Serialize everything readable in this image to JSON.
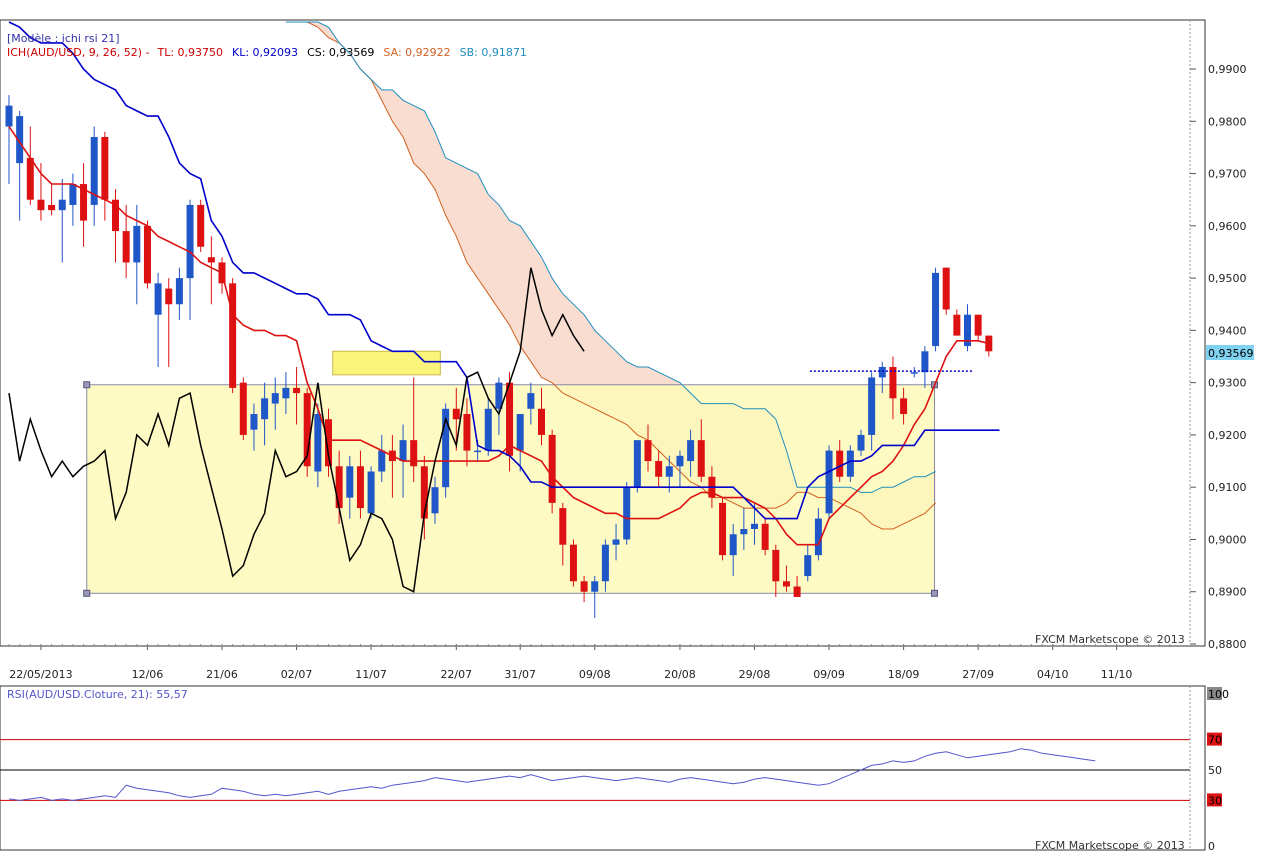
{
  "header": {
    "template": "[Modèle : ichi rsi 21]",
    "parts": [
      {
        "text": "ICH(AUD/USD, 9, 26, 52) -",
        "color": "#cc0000"
      },
      {
        "text": "TL: 0,93750",
        "color": "#cc0000"
      },
      {
        "text": "KL: 0,92093",
        "color": "#0000cc"
      },
      {
        "text": "CS: 0,93569",
        "color": "#000000"
      },
      {
        "text": "SA: 0,92922",
        "color": "#d2601e"
      },
      {
        "text": "SB: 0,91871",
        "color": "#1f8fbf"
      }
    ]
  },
  "watermark": "FXCM Marketscope © 2013",
  "last_price_label": "0,93569",
  "rsi_label": "RSI(AUD/USD.Cloture, 21): 55,57",
  "colors": {
    "bull": "#1f56c8",
    "bear": "#dd1111",
    "tenkan": "#dd1111",
    "kijun": "#0000cc",
    "chikou": "#000000",
    "span_a": "#d2601e",
    "span_b": "#1f8fbf",
    "cloud_fill": "#f9ddd0",
    "range_fill": "#fdf9b8",
    "rsi": "#5555cc"
  },
  "chart_data": [
    {
      "type": "candlestick",
      "symbol": "AUD/USD",
      "ylim": [
        0.88,
        0.999
      ],
      "y_ticks": [
        "0,9900",
        "0,9800",
        "0,9700",
        "0,9600",
        "0,9500",
        "0,9400",
        "0,9300",
        "0,9200",
        "0,9100",
        "0,9000",
        "0,8900",
        "0,8800"
      ],
      "y_tick_values": [
        0.99,
        0.98,
        0.97,
        0.96,
        0.95,
        0.94,
        0.93,
        0.92,
        0.91,
        0.9,
        0.89,
        0.88
      ],
      "x_ticks": [
        "22/05/2013",
        "12/06",
        "21/06",
        "02/07",
        "11/07",
        "22/07",
        "31/07",
        "09/08",
        "20/08",
        "29/08",
        "09/09",
        "18/09",
        "27/09",
        "04/10",
        "11/10"
      ],
      "x_tick_index": [
        3,
        13,
        20,
        27,
        34,
        42,
        48,
        55,
        63,
        70,
        77,
        84,
        91,
        98,
        104
      ],
      "candles": [
        {
          "o": 0.979,
          "h": 0.985,
          "l": 0.968,
          "c": 0.983
        },
        {
          "o": 0.972,
          "h": 0.982,
          "l": 0.961,
          "c": 0.981
        },
        {
          "o": 0.973,
          "h": 0.979,
          "l": 0.964,
          "c": 0.965
        },
        {
          "o": 0.965,
          "h": 0.972,
          "l": 0.961,
          "c": 0.963
        },
        {
          "o": 0.964,
          "h": 0.968,
          "l": 0.962,
          "c": 0.963
        },
        {
          "o": 0.963,
          "h": 0.969,
          "l": 0.953,
          "c": 0.965
        },
        {
          "o": 0.964,
          "h": 0.97,
          "l": 0.96,
          "c": 0.968
        },
        {
          "o": 0.968,
          "h": 0.972,
          "l": 0.956,
          "c": 0.961
        },
        {
          "o": 0.964,
          "h": 0.979,
          "l": 0.96,
          "c": 0.977
        },
        {
          "o": 0.977,
          "h": 0.978,
          "l": 0.961,
          "c": 0.965
        },
        {
          "o": 0.965,
          "h": 0.967,
          "l": 0.953,
          "c": 0.959
        },
        {
          "o": 0.959,
          "h": 0.964,
          "l": 0.95,
          "c": 0.953
        },
        {
          "o": 0.953,
          "h": 0.964,
          "l": 0.945,
          "c": 0.96
        },
        {
          "o": 0.96,
          "h": 0.961,
          "l": 0.948,
          "c": 0.949
        },
        {
          "o": 0.943,
          "h": 0.951,
          "l": 0.933,
          "c": 0.949
        },
        {
          "o": 0.948,
          "h": 0.95,
          "l": 0.933,
          "c": 0.945
        },
        {
          "o": 0.945,
          "h": 0.952,
          "l": 0.942,
          "c": 0.95
        },
        {
          "o": 0.95,
          "h": 0.965,
          "l": 0.942,
          "c": 0.964
        },
        {
          "o": 0.964,
          "h": 0.965,
          "l": 0.955,
          "c": 0.956
        },
        {
          "o": 0.954,
          "h": 0.958,
          "l": 0.945,
          "c": 0.953
        },
        {
          "o": 0.953,
          "h": 0.954,
          "l": 0.947,
          "c": 0.949
        },
        {
          "o": 0.949,
          "h": 0.95,
          "l": 0.928,
          "c": 0.929
        },
        {
          "o": 0.93,
          "h": 0.931,
          "l": 0.919,
          "c": 0.92
        },
        {
          "o": 0.921,
          "h": 0.926,
          "l": 0.917,
          "c": 0.924
        },
        {
          "o": 0.923,
          "h": 0.93,
          "l": 0.918,
          "c": 0.927
        },
        {
          "o": 0.926,
          "h": 0.931,
          "l": 0.921,
          "c": 0.928
        },
        {
          "o": 0.927,
          "h": 0.932,
          "l": 0.924,
          "c": 0.929
        },
        {
          "o": 0.929,
          "h": 0.933,
          "l": 0.922,
          "c": 0.928
        },
        {
          "o": 0.928,
          "h": 0.929,
          "l": 0.912,
          "c": 0.914
        },
        {
          "o": 0.913,
          "h": 0.926,
          "l": 0.91,
          "c": 0.924
        },
        {
          "o": 0.923,
          "h": 0.925,
          "l": 0.912,
          "c": 0.914
        },
        {
          "o": 0.914,
          "h": 0.917,
          "l": 0.903,
          "c": 0.906
        },
        {
          "o": 0.908,
          "h": 0.916,
          "l": 0.904,
          "c": 0.914
        },
        {
          "o": 0.914,
          "h": 0.917,
          "l": 0.904,
          "c": 0.906
        },
        {
          "o": 0.905,
          "h": 0.914,
          "l": 0.904,
          "c": 0.913
        },
        {
          "o": 0.913,
          "h": 0.92,
          "l": 0.911,
          "c": 0.917
        },
        {
          "o": 0.917,
          "h": 0.92,
          "l": 0.908,
          "c": 0.915
        },
        {
          "o": 0.915,
          "h": 0.922,
          "l": 0.908,
          "c": 0.919
        },
        {
          "o": 0.919,
          "h": 0.931,
          "l": 0.911,
          "c": 0.914
        },
        {
          "o": 0.914,
          "h": 0.916,
          "l": 0.9,
          "c": 0.904
        },
        {
          "o": 0.905,
          "h": 0.912,
          "l": 0.903,
          "c": 0.91
        },
        {
          "o": 0.91,
          "h": 0.926,
          "l": 0.908,
          "c": 0.925
        },
        {
          "o": 0.925,
          "h": 0.929,
          "l": 0.917,
          "c": 0.923
        },
        {
          "o": 0.924,
          "h": 0.927,
          "l": 0.914,
          "c": 0.917
        },
        {
          "o": 0.917,
          "h": 0.919,
          "l": 0.915,
          "c": 0.917
        },
        {
          "o": 0.917,
          "h": 0.927,
          "l": 0.916,
          "c": 0.925
        },
        {
          "o": 0.925,
          "h": 0.931,
          "l": 0.92,
          "c": 0.93
        },
        {
          "o": 0.93,
          "h": 0.932,
          "l": 0.913,
          "c": 0.916
        },
        {
          "o": 0.917,
          "h": 0.924,
          "l": 0.913,
          "c": 0.924
        },
        {
          "o": 0.925,
          "h": 0.93,
          "l": 0.922,
          "c": 0.928
        },
        {
          "o": 0.925,
          "h": 0.929,
          "l": 0.918,
          "c": 0.92
        },
        {
          "o": 0.92,
          "h": 0.921,
          "l": 0.905,
          "c": 0.907
        },
        {
          "o": 0.906,
          "h": 0.907,
          "l": 0.895,
          "c": 0.899
        },
        {
          "o": 0.899,
          "h": 0.9,
          "l": 0.891,
          "c": 0.892
        },
        {
          "o": 0.892,
          "h": 0.893,
          "l": 0.888,
          "c": 0.89
        },
        {
          "o": 0.89,
          "h": 0.893,
          "l": 0.885,
          "c": 0.892
        },
        {
          "o": 0.892,
          "h": 0.9,
          "l": 0.89,
          "c": 0.899
        },
        {
          "o": 0.899,
          "h": 0.903,
          "l": 0.896,
          "c": 0.9
        },
        {
          "o": 0.9,
          "h": 0.911,
          "l": 0.899,
          "c": 0.91
        },
        {
          "o": 0.91,
          "h": 0.919,
          "l": 0.909,
          "c": 0.919
        },
        {
          "o": 0.919,
          "h": 0.922,
          "l": 0.913,
          "c": 0.915
        },
        {
          "o": 0.915,
          "h": 0.917,
          "l": 0.91,
          "c": 0.912
        },
        {
          "o": 0.912,
          "h": 0.916,
          "l": 0.909,
          "c": 0.914
        },
        {
          "o": 0.914,
          "h": 0.917,
          "l": 0.91,
          "c": 0.916
        },
        {
          "o": 0.915,
          "h": 0.921,
          "l": 0.912,
          "c": 0.919
        },
        {
          "o": 0.919,
          "h": 0.923,
          "l": 0.911,
          "c": 0.912
        },
        {
          "o": 0.912,
          "h": 0.914,
          "l": 0.906,
          "c": 0.908
        },
        {
          "o": 0.907,
          "h": 0.908,
          "l": 0.896,
          "c": 0.897
        },
        {
          "o": 0.897,
          "h": 0.903,
          "l": 0.893,
          "c": 0.901
        },
        {
          "o": 0.901,
          "h": 0.906,
          "l": 0.898,
          "c": 0.902
        },
        {
          "o": 0.902,
          "h": 0.907,
          "l": 0.899,
          "c": 0.903
        },
        {
          "o": 0.903,
          "h": 0.904,
          "l": 0.897,
          "c": 0.898
        },
        {
          "o": 0.898,
          "h": 0.899,
          "l": 0.889,
          "c": 0.892
        },
        {
          "o": 0.892,
          "h": 0.895,
          "l": 0.89,
          "c": 0.891
        },
        {
          "o": 0.891,
          "h": 0.893,
          "l": 0.889,
          "c": 0.889
        },
        {
          "o": 0.893,
          "h": 0.899,
          "l": 0.892,
          "c": 0.897
        },
        {
          "o": 0.897,
          "h": 0.906,
          "l": 0.896,
          "c": 0.904
        },
        {
          "o": 0.905,
          "h": 0.918,
          "l": 0.904,
          "c": 0.917
        },
        {
          "o": 0.917,
          "h": 0.919,
          "l": 0.911,
          "c": 0.912
        },
        {
          "o": 0.912,
          "h": 0.918,
          "l": 0.911,
          "c": 0.917
        },
        {
          "o": 0.917,
          "h": 0.921,
          "l": 0.916,
          "c": 0.92
        },
        {
          "o": 0.92,
          "h": 0.932,
          "l": 0.917,
          "c": 0.931
        },
        {
          "o": 0.931,
          "h": 0.934,
          "l": 0.928,
          "c": 0.933
        },
        {
          "o": 0.933,
          "h": 0.935,
          "l": 0.923,
          "c": 0.927
        },
        {
          "o": 0.927,
          "h": 0.929,
          "l": 0.922,
          "c": 0.924
        },
        {
          "o": 0.932,
          "h": 0.933,
          "l": 0.931,
          "c": 0.932
        },
        {
          "o": 0.932,
          "h": 0.937,
          "l": 0.929,
          "c": 0.936
        },
        {
          "o": 0.937,
          "h": 0.952,
          "l": 0.936,
          "c": 0.951
        },
        {
          "o": 0.952,
          "h": 0.952,
          "l": 0.943,
          "c": 0.944
        },
        {
          "o": 0.943,
          "h": 0.944,
          "l": 0.939,
          "c": 0.939
        },
        {
          "o": 0.937,
          "h": 0.945,
          "l": 0.936,
          "c": 0.943
        },
        {
          "o": 0.943,
          "h": 0.943,
          "l": 0.938,
          "c": 0.939
        },
        {
          "o": 0.939,
          "h": 0.939,
          "l": 0.935,
          "c": 0.936
        }
      ],
      "tenkan": [
        0.979,
        0.976,
        0.973,
        0.97,
        0.968,
        0.968,
        0.968,
        0.967,
        0.966,
        0.965,
        0.964,
        0.962,
        0.961,
        0.96,
        0.958,
        0.957,
        0.956,
        0.955,
        0.953,
        0.952,
        0.951,
        0.943,
        0.941,
        0.94,
        0.94,
        0.939,
        0.939,
        0.938,
        0.93,
        0.925,
        0.919,
        0.919,
        0.919,
        0.919,
        0.918,
        0.917,
        0.916,
        0.915,
        0.915,
        0.915,
        0.915,
        0.915,
        0.915,
        0.915,
        0.915,
        0.915,
        0.916,
        0.918,
        0.917,
        0.916,
        0.915,
        0.912,
        0.91,
        0.908,
        0.907,
        0.906,
        0.905,
        0.905,
        0.904,
        0.904,
        0.904,
        0.904,
        0.905,
        0.906,
        0.908,
        0.909,
        0.909,
        0.908,
        0.908,
        0.908,
        0.907,
        0.906,
        0.904,
        0.901,
        0.899,
        0.899,
        0.899,
        0.904,
        0.906,
        0.908,
        0.91,
        0.912,
        0.913,
        0.915,
        0.918,
        0.922,
        0.925,
        0.93,
        0.935,
        0.938,
        0.938,
        0.938,
        0.9375
      ],
      "kijun": [
        0.999,
        0.998,
        0.996,
        0.995,
        0.995,
        0.995,
        0.993,
        0.99,
        0.988,
        0.987,
        0.986,
        0.983,
        0.982,
        0.981,
        0.981,
        0.977,
        0.972,
        0.97,
        0.969,
        0.961,
        0.958,
        0.953,
        0.951,
        0.951,
        0.95,
        0.949,
        0.948,
        0.947,
        0.947,
        0.946,
        0.943,
        0.943,
        0.943,
        0.942,
        0.938,
        0.937,
        0.936,
        0.936,
        0.936,
        0.934,
        0.934,
        0.934,
        0.934,
        0.931,
        0.918,
        0.917,
        0.917,
        0.916,
        0.914,
        0.911,
        0.911,
        0.91,
        0.91,
        0.91,
        0.91,
        0.91,
        0.91,
        0.91,
        0.91,
        0.91,
        0.91,
        0.91,
        0.91,
        0.91,
        0.91,
        0.91,
        0.91,
        0.91,
        0.91,
        0.908,
        0.906,
        0.904,
        0.904,
        0.904,
        0.904,
        0.91,
        0.912,
        0.913,
        0.914,
        0.915,
        0.915,
        0.916,
        0.918,
        0.918,
        0.918,
        0.918,
        0.9209,
        0.9209,
        0.9209,
        0.9209,
        0.9209,
        0.9209,
        0.9209,
        0.9209
      ],
      "chikou": [
        0.928,
        0.915,
        0.923,
        0.917,
        0.912,
        0.915,
        0.912,
        0.914,
        0.915,
        0.917,
        0.904,
        0.909,
        0.92,
        0.918,
        0.924,
        0.918,
        0.927,
        0.928,
        0.918,
        0.91,
        0.902,
        0.893,
        0.895,
        0.901,
        0.905,
        0.917,
        0.912,
        0.913,
        0.916,
        0.93,
        0.916,
        0.906,
        0.896,
        0.899,
        0.905,
        0.904,
        0.9,
        0.891,
        0.89,
        0.905,
        0.915,
        0.923,
        0.918,
        0.931,
        0.932,
        0.927,
        0.924,
        0.93,
        0.936,
        0.952,
        0.944,
        0.939,
        0.943,
        0.939,
        0.936
      ],
      "chikou_start": 0,
      "span_a": [
        0.9999,
        0.9999,
        0.9999,
        0.998,
        0.996,
        0.995,
        0.993,
        0.99,
        0.988,
        0.984,
        0.98,
        0.977,
        0.972,
        0.97,
        0.967,
        0.962,
        0.958,
        0.953,
        0.95,
        0.947,
        0.944,
        0.941,
        0.937,
        0.934,
        0.931,
        0.93,
        0.928,
        0.927,
        0.926,
        0.925,
        0.924,
        0.923,
        0.922,
        0.92,
        0.919,
        0.917,
        0.915,
        0.913,
        0.911,
        0.91,
        0.908,
        0.908,
        0.907,
        0.906,
        0.906,
        0.906,
        0.906,
        0.907,
        0.909,
        0.909,
        0.908,
        0.908,
        0.907,
        0.906,
        0.905,
        0.903,
        0.902,
        0.902,
        0.903,
        0.904,
        0.905,
        0.907
      ],
      "span_b": [
        0.9999,
        0.9999,
        0.9999,
        0.999,
        0.998,
        0.995,
        0.993,
        0.99,
        0.988,
        0.986,
        0.986,
        0.984,
        0.983,
        0.982,
        0.978,
        0.973,
        0.972,
        0.971,
        0.97,
        0.966,
        0.964,
        0.961,
        0.96,
        0.957,
        0.954,
        0.95,
        0.947,
        0.945,
        0.943,
        0.94,
        0.938,
        0.936,
        0.934,
        0.933,
        0.933,
        0.932,
        0.931,
        0.93,
        0.928,
        0.926,
        0.926,
        0.926,
        0.926,
        0.925,
        0.925,
        0.925,
        0.923,
        0.917,
        0.91,
        0.91,
        0.91,
        0.91,
        0.91,
        0.91,
        0.909,
        0.909,
        0.91,
        0.91,
        0.911,
        0.912,
        0.912,
        0.913
      ],
      "span_start": 26,
      "range_box": {
        "y_top": 0.9296,
        "y_bottom": 0.8897,
        "x_from_index": 7.3,
        "x_to_index": 86.9
      },
      "mini_box": {
        "y_top": 0.936,
        "y_bottom": 0.9315,
        "x_from_index": 30.4,
        "x_to_index": 40.5
      },
      "dotted_level": {
        "value": 0.9322,
        "x_from_index": 75.2,
        "x_to_index": 90.6
      }
    },
    {
      "type": "line",
      "name": "RSI",
      "ylim": [
        0,
        100
      ],
      "y_ticks": [
        "100",
        "70",
        "50",
        "30",
        "0"
      ],
      "y_tick_values": [
        100,
        70,
        50,
        30,
        0
      ],
      "levels": [
        70,
        50,
        30
      ],
      "values": [
        31,
        30,
        31,
        32,
        30,
        31,
        30,
        31,
        32,
        33,
        32,
        40,
        38,
        37,
        36,
        35,
        33,
        32,
        33,
        34,
        38,
        37,
        36,
        34,
        33,
        34,
        33,
        34,
        35,
        36,
        34,
        36,
        37,
        38,
        39,
        38,
        40,
        41,
        42,
        43,
        45,
        44,
        43,
        42,
        43,
        44,
        45,
        46,
        45,
        47,
        45,
        43,
        44,
        45,
        46,
        45,
        44,
        43,
        44,
        45,
        44,
        43,
        42,
        44,
        45,
        44,
        43,
        42,
        41,
        42,
        44,
        45,
        44,
        43,
        42,
        41,
        40,
        41,
        44,
        47,
        50,
        53,
        54,
        56,
        55,
        56,
        59,
        61,
        62,
        60,
        58,
        59,
        60,
        61,
        62,
        64,
        63,
        61,
        60,
        59,
        58,
        57,
        56
      ]
    }
  ]
}
